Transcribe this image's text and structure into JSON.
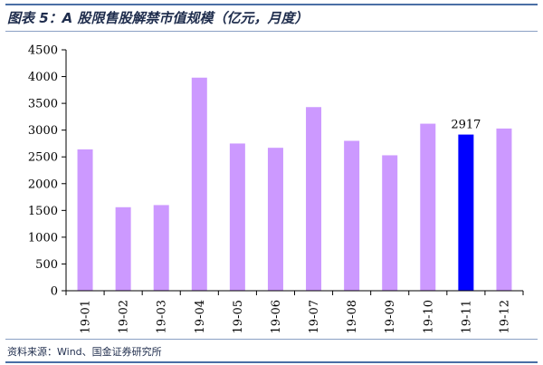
{
  "header": {
    "title": "图表 5：A 股限售股解禁市值规模（亿元，月度）"
  },
  "footer": {
    "source": "资料来源：Wind、国金证券研究所"
  },
  "colors": {
    "bar": "#cc99ff",
    "highlight_bar": "#0000ff",
    "axis": "#000000"
  },
  "chart_data": {
    "type": "bar",
    "title": "图表 5：A 股限售股解禁市值规模（亿元，月度）",
    "xlabel": "",
    "ylabel": "",
    "categories": [
      "19-01",
      "19-02",
      "19-03",
      "19-04",
      "19-05",
      "19-06",
      "19-07",
      "19-08",
      "19-09",
      "19-10",
      "19-11",
      "19-12"
    ],
    "values": [
      2640,
      1560,
      1600,
      3980,
      2750,
      2670,
      3430,
      2800,
      2530,
      3120,
      2917,
      3030
    ],
    "highlight_index": 10,
    "data_labels": [
      {
        "index": 10,
        "text": "2917"
      }
    ],
    "ylim": [
      0,
      4500
    ],
    "yticks": [
      0,
      500,
      1000,
      1500,
      2000,
      2500,
      3000,
      3500,
      4000,
      4500
    ],
    "grid": false,
    "legend": "none"
  }
}
